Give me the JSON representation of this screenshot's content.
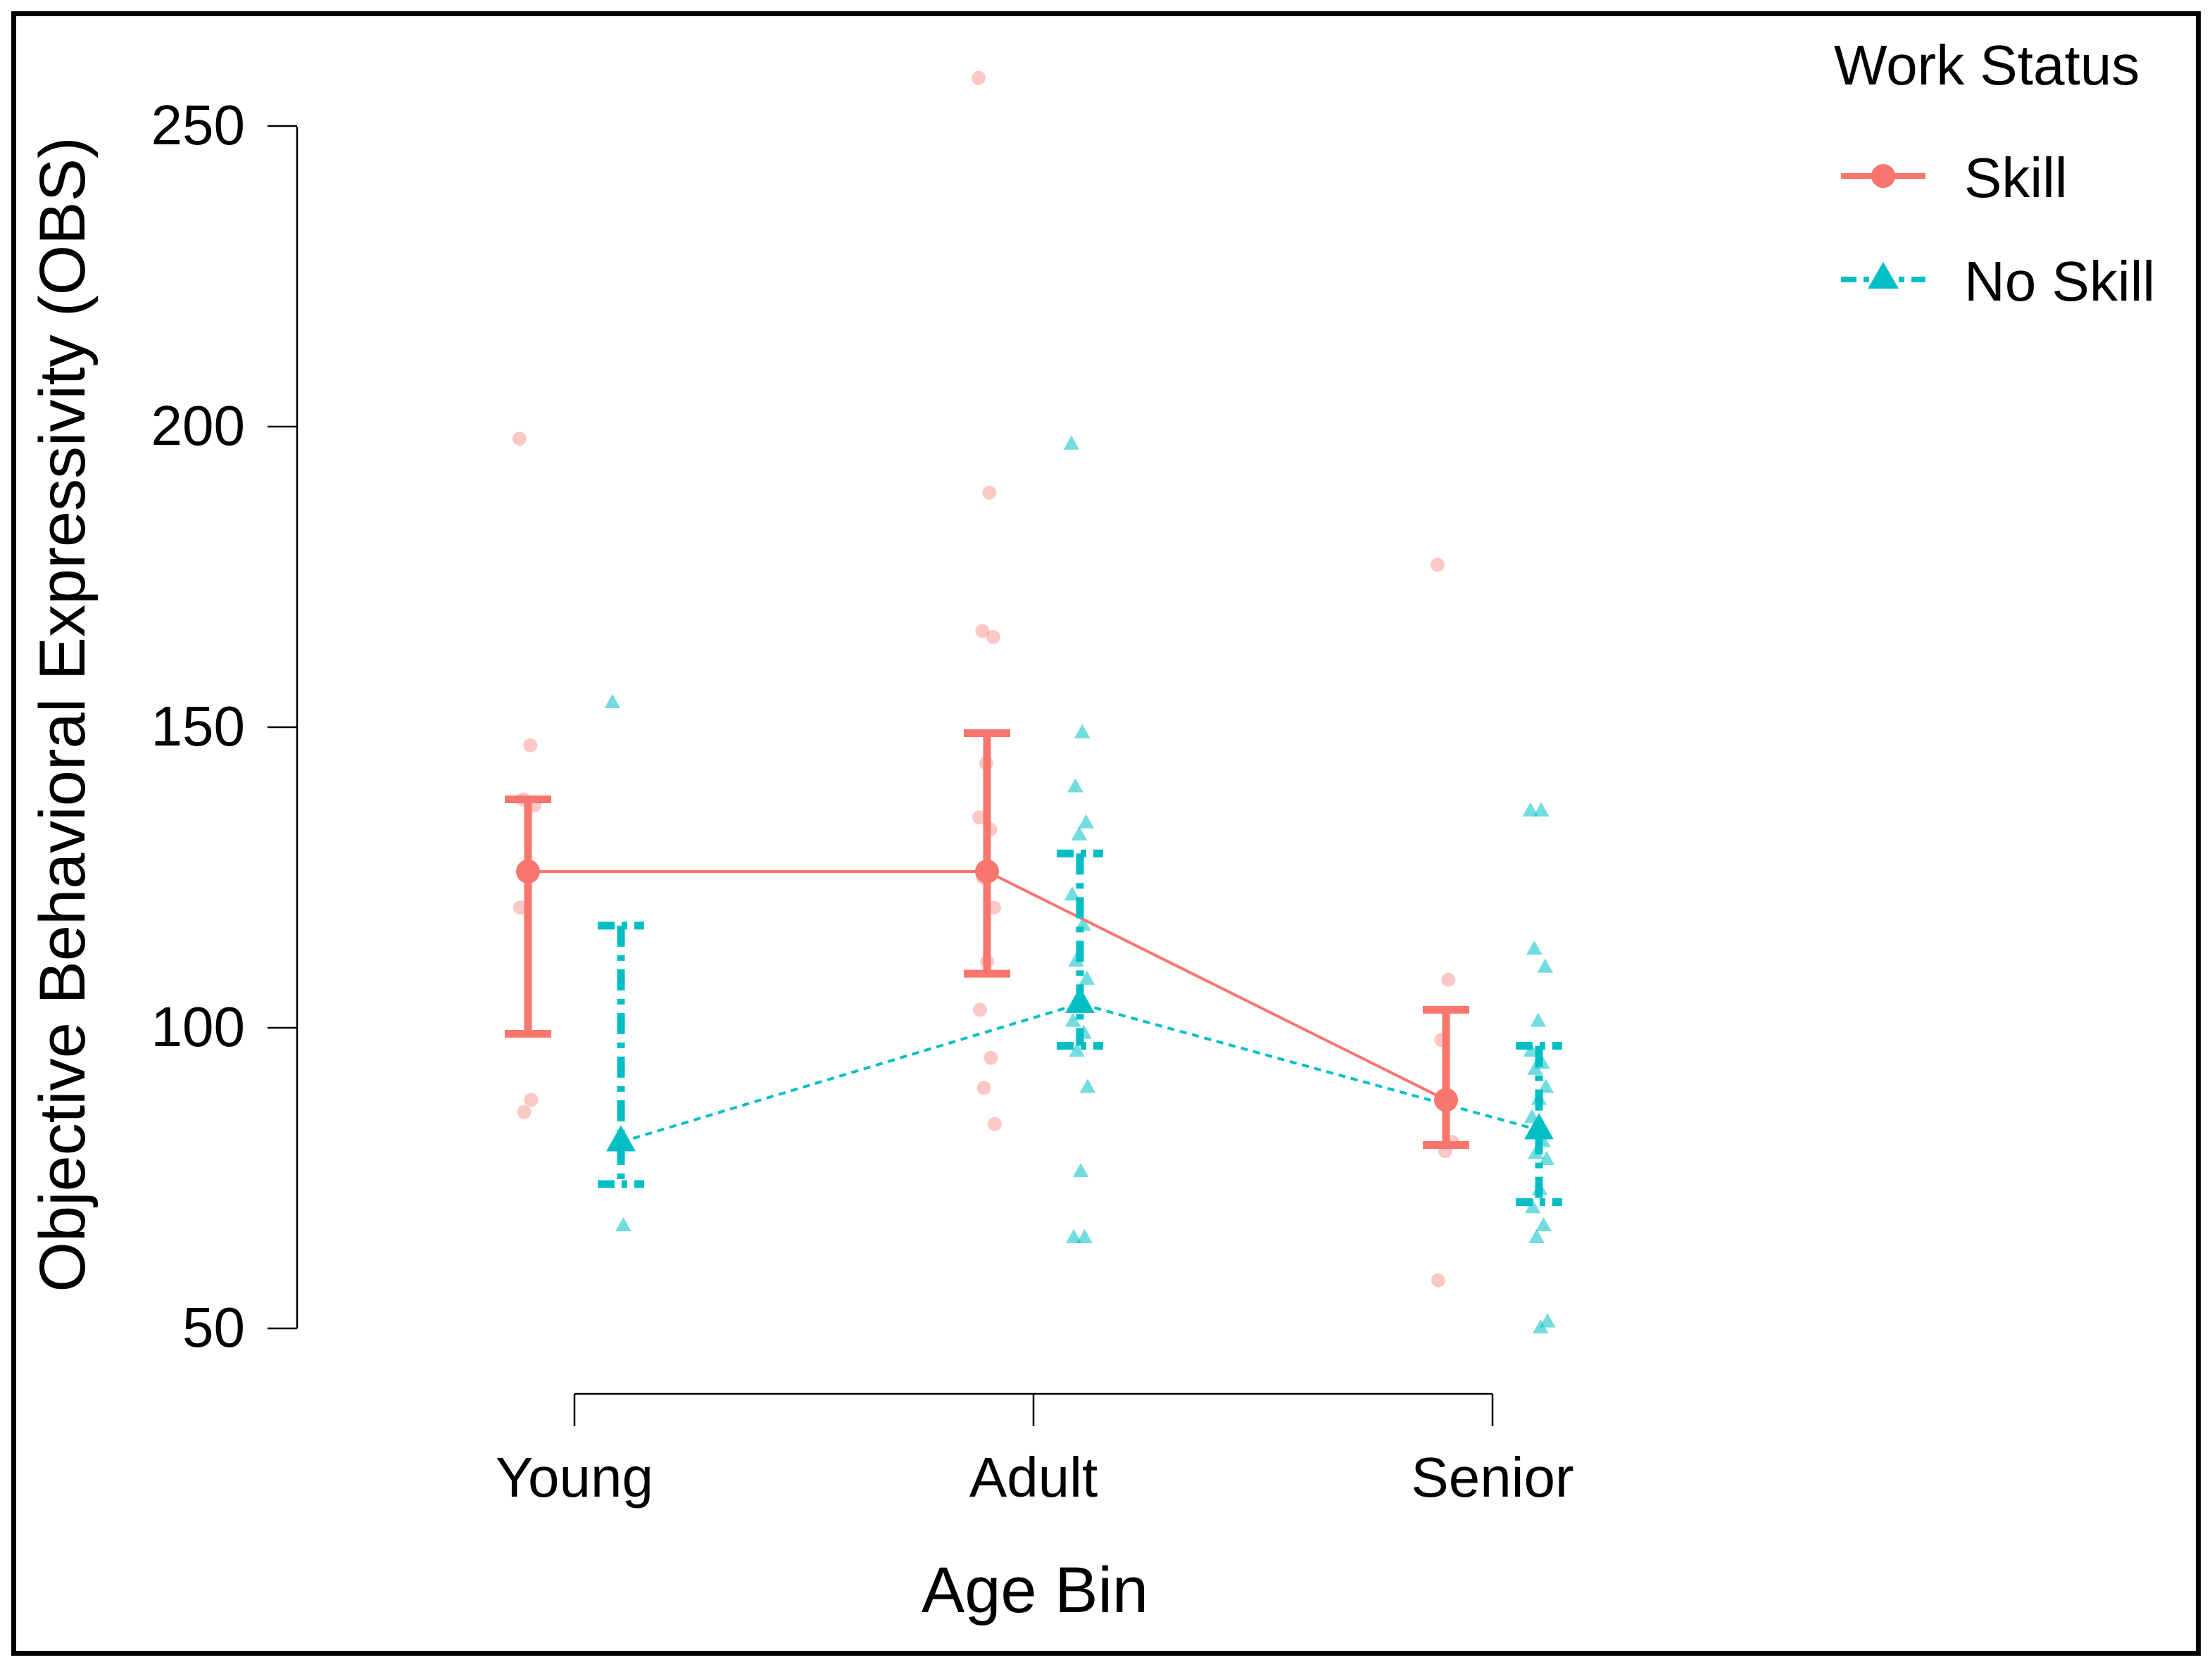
{
  "chart_data": {
    "type": "line",
    "title": "",
    "xlabel": "Age Bin",
    "ylabel": "Objective Behavioral Expressivity (OBS)",
    "categories": [
      "Young",
      "Adult",
      "Senior"
    ],
    "yticks": [
      50,
      100,
      150,
      200,
      250
    ],
    "ylim": [
      50,
      258
    ],
    "grid": false,
    "legend": {
      "title": "Work Status",
      "placement": "top-right"
    },
    "series": [
      {
        "name": "Skill",
        "color": "#F8766D",
        "marker": "circle",
        "line_style": "solid",
        "means": [
          126,
          126,
          88
        ],
        "ci_low": [
          99,
          109,
          80.5
        ],
        "ci_high": [
          138,
          149,
          103
        ],
        "points": [
          [
            198,
            147,
            138,
            137,
            126,
            120,
            88,
            86
          ],
          [
            258,
            189,
            166,
            165,
            144,
            135,
            133,
            125,
            120,
            111,
            103,
            95,
            90,
            84
          ],
          [
            177,
            108,
            98,
            81,
            79.5,
            58
          ]
        ]
      },
      {
        "name": "No Skill",
        "color": "#00BFC4",
        "marker": "triangle",
        "line_style": "dashed",
        "means": [
          81,
          104,
          83
        ],
        "ci_low": [
          74,
          97,
          71
        ],
        "ci_high": [
          117,
          129,
          97
        ],
        "points": [
          [
            154,
            67
          ],
          [
            197,
            149,
            140,
            134,
            132,
            122,
            117,
            111,
            108,
            105,
            101,
            99,
            96,
            90,
            76,
            65,
            65
          ],
          [
            136,
            136,
            113,
            110,
            101,
            96,
            94,
            93,
            90,
            88,
            85,
            81,
            79,
            78,
            73,
            70,
            67,
            65,
            51,
            50
          ]
        ]
      }
    ]
  }
}
